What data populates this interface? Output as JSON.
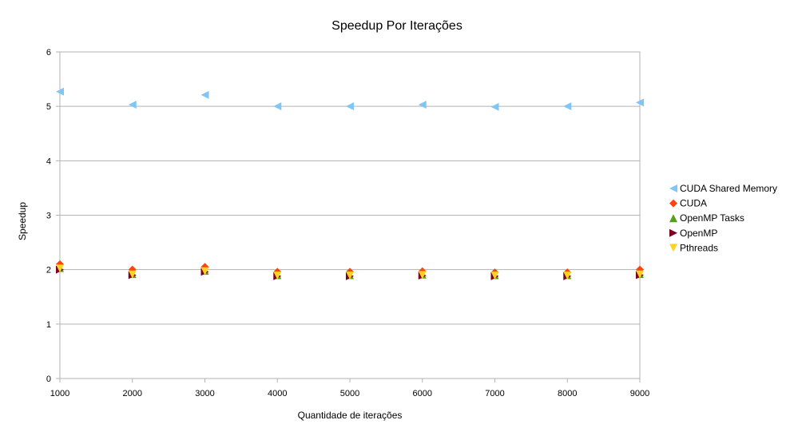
{
  "chart_data": {
    "type": "scatter",
    "title": "Speedup Por Iterações",
    "xlabel": "Quantidade de iterações",
    "ylabel": "Speedup",
    "x": [
      1000,
      2000,
      3000,
      4000,
      5000,
      6000,
      7000,
      8000,
      9000
    ],
    "x_tick_labels": [
      "1000",
      "2000",
      "3000",
      "4000",
      "5000",
      "6000",
      "7000",
      "8000",
      "9000"
    ],
    "y_tick_labels": [
      "0",
      "1",
      "2",
      "3",
      "4",
      "5",
      "6"
    ],
    "xlim": [
      1000,
      9000
    ],
    "ylim": [
      0,
      6
    ],
    "grid": "horizontal",
    "legend_position": "right",
    "series": [
      {
        "name": "CUDA Shared Memory",
        "marker": "triangle-left",
        "color": "#7fc6f5",
        "values": [
          5.27,
          5.03,
          5.21,
          5.0,
          5.0,
          5.03,
          4.99,
          5.0,
          5.07
        ]
      },
      {
        "name": "CUDA",
        "marker": "diamond",
        "color": "#ff420e",
        "values": [
          2.1,
          2.0,
          2.05,
          1.96,
          1.96,
          1.97,
          1.95,
          1.95,
          2.0
        ]
      },
      {
        "name": "OpenMP Tasks",
        "marker": "triangle-up",
        "color": "#579d1c",
        "values": [
          2.03,
          1.92,
          1.98,
          1.9,
          1.9,
          1.91,
          1.9,
          1.9,
          1.92
        ]
      },
      {
        "name": "OpenMP",
        "marker": "triangle-right",
        "color": "#7e0021",
        "values": [
          2.0,
          1.9,
          1.96,
          1.88,
          1.88,
          1.89,
          1.88,
          1.88,
          1.9
        ]
      },
      {
        "name": "Pthreads",
        "marker": "triangle-down",
        "color": "#ffd320",
        "values": [
          2.02,
          1.91,
          1.97,
          1.89,
          1.89,
          1.9,
          1.89,
          1.89,
          1.91
        ]
      }
    ]
  }
}
